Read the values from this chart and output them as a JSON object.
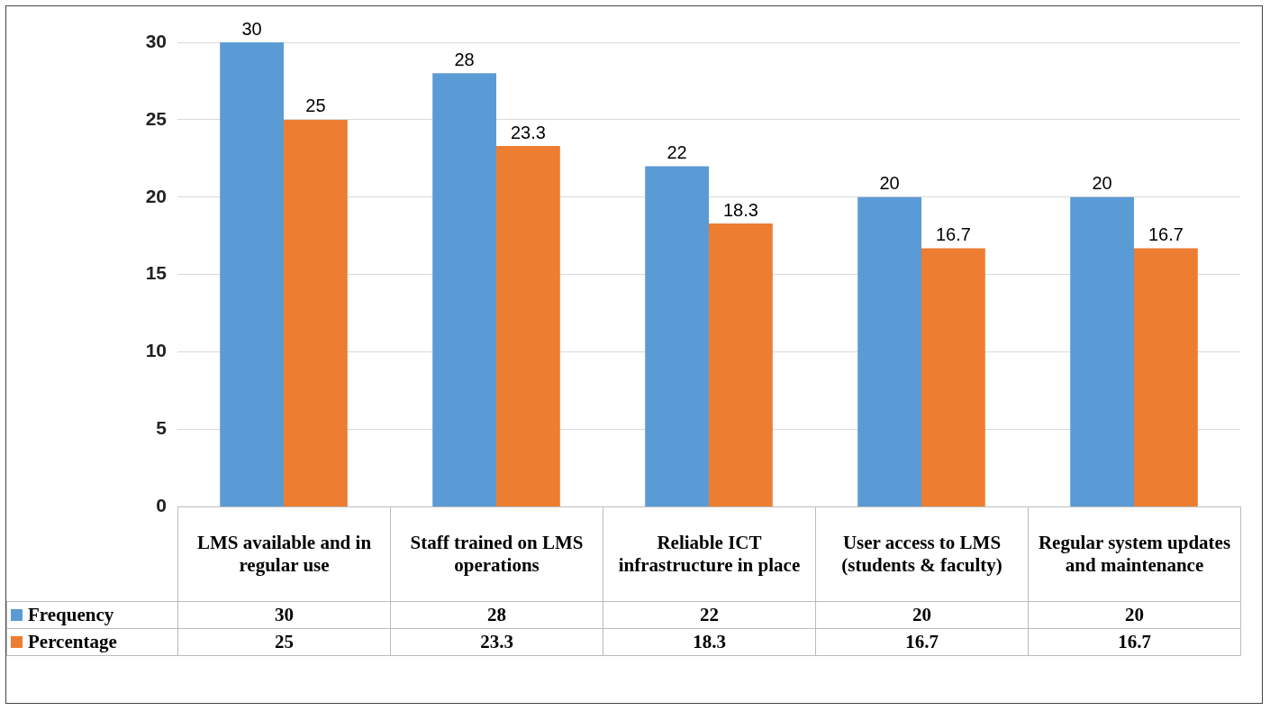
{
  "chart_data": {
    "type": "bar",
    "categories": [
      "LMS available and in regular use",
      "Staff trained on LMS operations",
      "Reliable ICT infrastructure in place",
      "User access to LMS (students & faculty)",
      "Regular system updates and maintenance"
    ],
    "series": [
      {
        "name": "Frequency",
        "color": "#5b9bd5",
        "values": [
          30,
          28,
          22,
          20,
          20
        ],
        "value_labels": [
          "30",
          "28",
          "22",
          "20",
          "20"
        ]
      },
      {
        "name": "Percentage",
        "color": "#ed7d31",
        "values": [
          25,
          23.3,
          18.3,
          16.7,
          16.7
        ],
        "value_labels": [
          "25",
          "23.3",
          "18.3",
          "16.7",
          "16.7"
        ]
      }
    ],
    "ylim": [
      0,
      30
    ],
    "yticks": [
      0,
      5,
      10,
      15,
      20,
      25,
      30
    ],
    "grid": "y",
    "legend": "bottom"
  }
}
